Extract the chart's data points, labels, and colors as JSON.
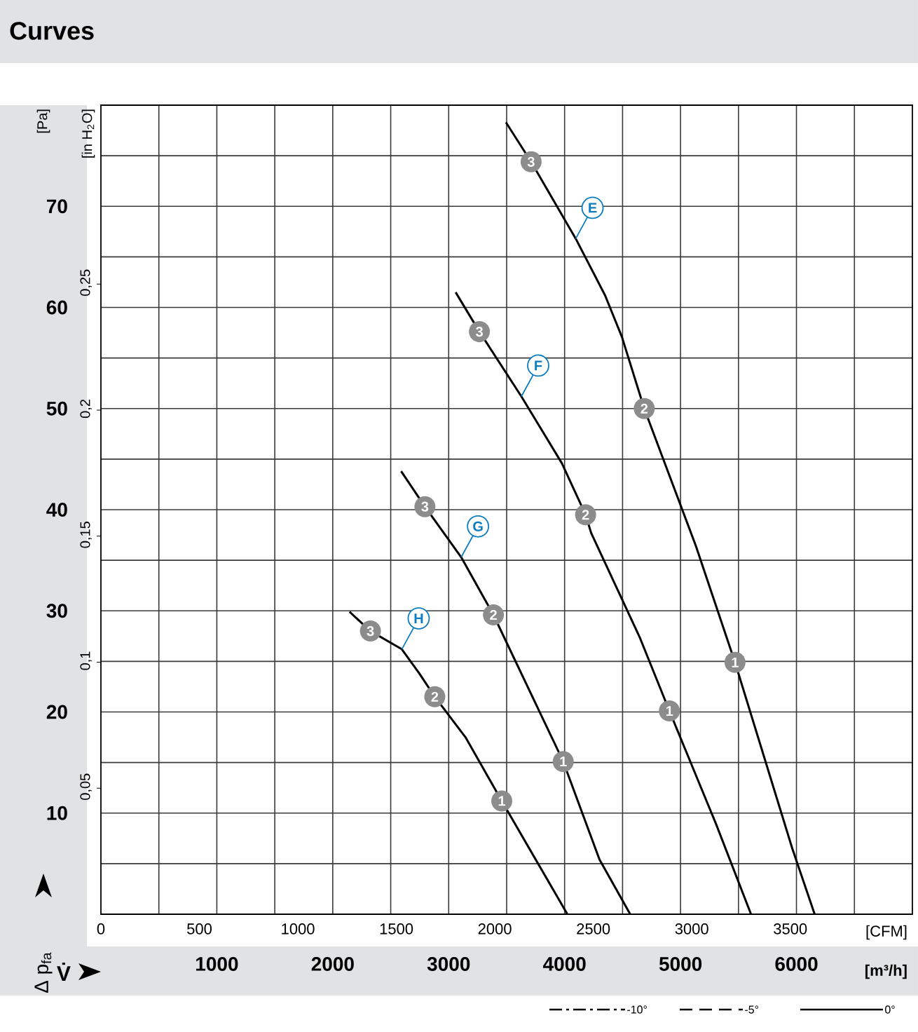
{
  "chart_data": {
    "type": "line",
    "title": "Curves",
    "xlabel": "[m³/h]",
    "x2label": "[CFM]",
    "ylabel": "[Pa]",
    "y2label": "[in H$_{2}$O]",
    "xlim": [
      0,
      7000
    ],
    "ylim": [
      0,
      80
    ],
    "x2lim": [
      0,
      4120
    ],
    "y2lim": [
      0,
      0.321
    ],
    "xticks": [
      {
        "value": 500,
        "label": null
      },
      1000,
      {
        "value": 1500,
        "label": null
      },
      2000,
      {
        "value": 2500,
        "label": null
      },
      3000,
      {
        "value": 3500,
        "label": null
      },
      4000,
      {
        "value": 4500,
        "label": null
      },
      5000,
      {
        "value": 5500,
        "label": null
      },
      6000,
      {
        "value": 6500,
        "label": null
      }
    ],
    "yticks": [
      {
        "value": 5,
        "label": null
      },
      10,
      {
        "value": 15,
        "label": null
      },
      20,
      {
        "value": 25,
        "label": null
      },
      30,
      {
        "value": 35,
        "label": null
      },
      40,
      {
        "value": 45,
        "label": null
      },
      50,
      {
        "value": 55,
        "label": null
      },
      60,
      {
        "value": 65,
        "label": null
      },
      70,
      {
        "value": 75,
        "label": null
      }
    ],
    "x2ticks": [
      0,
      500,
      1000,
      1500,
      2000,
      2500,
      3000,
      3500
    ],
    "y2ticks": [
      {
        "value": 0.05,
        "label": "0,05"
      },
      {
        "value": 0.1,
        "label": "0,1"
      },
      {
        "value": 0.15,
        "label": "0,15"
      },
      {
        "value": 0.2,
        "label": "0,2"
      },
      {
        "value": 0.25,
        "label": "0,25"
      }
    ],
    "grid": true,
    "marker": "none",
    "line_style": "solid",
    "series": [
      {
        "name": "E",
        "color": "#000000",
        "x": [
          3494,
          3711,
          4096,
          4349,
          4494,
          4687,
          5133,
          5470,
          5964,
          6157
        ],
        "values": [
          78.3,
          74.4,
          66.8,
          61.2,
          57.1,
          50,
          36.4,
          24.9,
          6.5,
          0
        ]
      },
      {
        "name": "F",
        "color": "#000000",
        "x": [
          3060,
          3265,
          3627,
          3976,
          4181,
          4229,
          4651,
          4904,
          5307,
          5608
        ],
        "values": [
          61.5,
          57.6,
          51.2,
          44.6,
          39.5,
          37.7,
          27.3,
          20.1,
          8.9,
          0
        ]
      },
      {
        "name": "G",
        "color": "#000000",
        "x": [
          2590,
          2795,
          3108,
          3386,
          3988,
          4301,
          4566
        ],
        "values": [
          43.8,
          40.3,
          35.3,
          29.6,
          15.1,
          5.4,
          0
        ]
      },
      {
        "name": "H",
        "color": "#000000",
        "x": [
          2145,
          2325,
          2596,
          2747,
          2880,
          3145,
          3458,
          4024
        ],
        "values": [
          29.9,
          28,
          26.2,
          23.8,
          21.5,
          17.5,
          11.2,
          0
        ]
      }
    ],
    "annotations": [
      "Δ p$_{fa}$",
      "V̇",
      "-10°",
      "-5°",
      "0°",
      {
        "text": "3",
        "x": 3711,
        "y": 74.4
      },
      {
        "text": "2",
        "x": 4687,
        "y": 50
      },
      {
        "text": "1",
        "x": 5470,
        "y": 24.9
      },
      {
        "text": "3",
        "x": 3265,
        "y": 57.6
      },
      {
        "text": "2",
        "x": 4181,
        "y": 39.5
      },
      {
        "text": "1",
        "x": 4904,
        "y": 20.1
      },
      {
        "text": "3",
        "x": 2795,
        "y": 40.3
      },
      {
        "text": "2",
        "x": 3386,
        "y": 29.6
      },
      {
        "text": "1",
        "x": 3988,
        "y": 15.1
      },
      {
        "text": "3",
        "x": 2325,
        "y": 28
      },
      {
        "text": "2",
        "x": 2880,
        "y": 21.5
      },
      {
        "text": "1",
        "x": 3458,
        "y": 11.2
      }
    ]
  }
}
